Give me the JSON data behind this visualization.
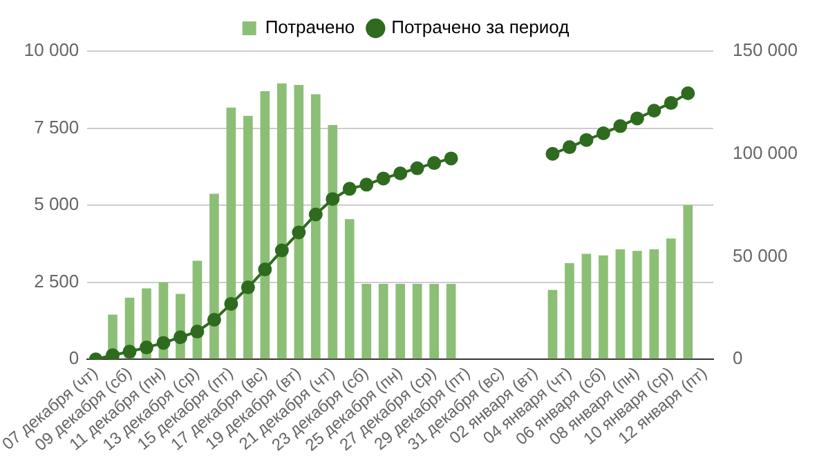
{
  "chart_data": {
    "type": "bar",
    "categories": [
      "07 декабря (чт)",
      null,
      "09 декабря (сб)",
      null,
      "11 декабря (пн)",
      null,
      "13 декабря (ср)",
      null,
      "15 декабря (пт)",
      null,
      "17 декабря (вс)",
      null,
      "19 декабря (вт)",
      null,
      "21 декабря (чт)",
      null,
      "23 декабря (сб)",
      null,
      "25 декабря (пн)",
      null,
      "27 декабря (ср)",
      null,
      "29 декабря (пт)",
      null,
      "31 декабря (вс)",
      null,
      "02 января (вт)",
      null,
      "04 января (чт)",
      null,
      "06 января (сб)",
      null,
      "08 января (пн)",
      null,
      "10 января (ср)",
      null,
      "12 января (пт)"
    ],
    "series": [
      {
        "name": "Потрачено",
        "color": "#8cbf76",
        "values": [
          0,
          1450,
          2000,
          2300,
          2500,
          2120,
          3200,
          5370,
          8170,
          7900,
          8700,
          8950,
          8900,
          8600,
          7600,
          4550,
          2450,
          2450,
          2450,
          2450,
          2450,
          2450,
          null,
          null,
          null,
          null,
          null,
          2250,
          3120,
          3420,
          3370,
          3570,
          3520,
          3570,
          3920,
          5000,
          null
        ]
      },
      {
        "name": "Потрачено за период",
        "type": "line",
        "axis": "y2",
        "color": "#2e6b1f",
        "marker": "circle",
        "values": [
          0,
          2000,
          3750,
          5750,
          8000,
          10750,
          13500,
          19250,
          27000,
          35000,
          43750,
          53000,
          61750,
          70500,
          78000,
          83000,
          85000,
          88000,
          90500,
          93000,
          95500,
          97750,
          null,
          null,
          null,
          null,
          null,
          100000,
          103250,
          106750,
          110000,
          113500,
          117250,
          121000,
          124750,
          129500,
          null
        ]
      }
    ],
    "ylim": [
      0,
      10000
    ],
    "yticks": [
      0,
      {
        "value": 2500,
        "label": "2 500"
      },
      {
        "value": 5000,
        "label": "5 000"
      },
      {
        "value": 7500,
        "label": "7 500"
      },
      {
        "value": 10000,
        "label": "10 000"
      }
    ],
    "y2lim": [
      0,
      150000
    ],
    "y2ticks": [
      0,
      {
        "value": 50000,
        "label": "50 000"
      },
      {
        "value": 100000,
        "label": "100 000"
      },
      {
        "value": 150000,
        "label": "150 000"
      }
    ],
    "grid": "y",
    "legend": "top"
  }
}
